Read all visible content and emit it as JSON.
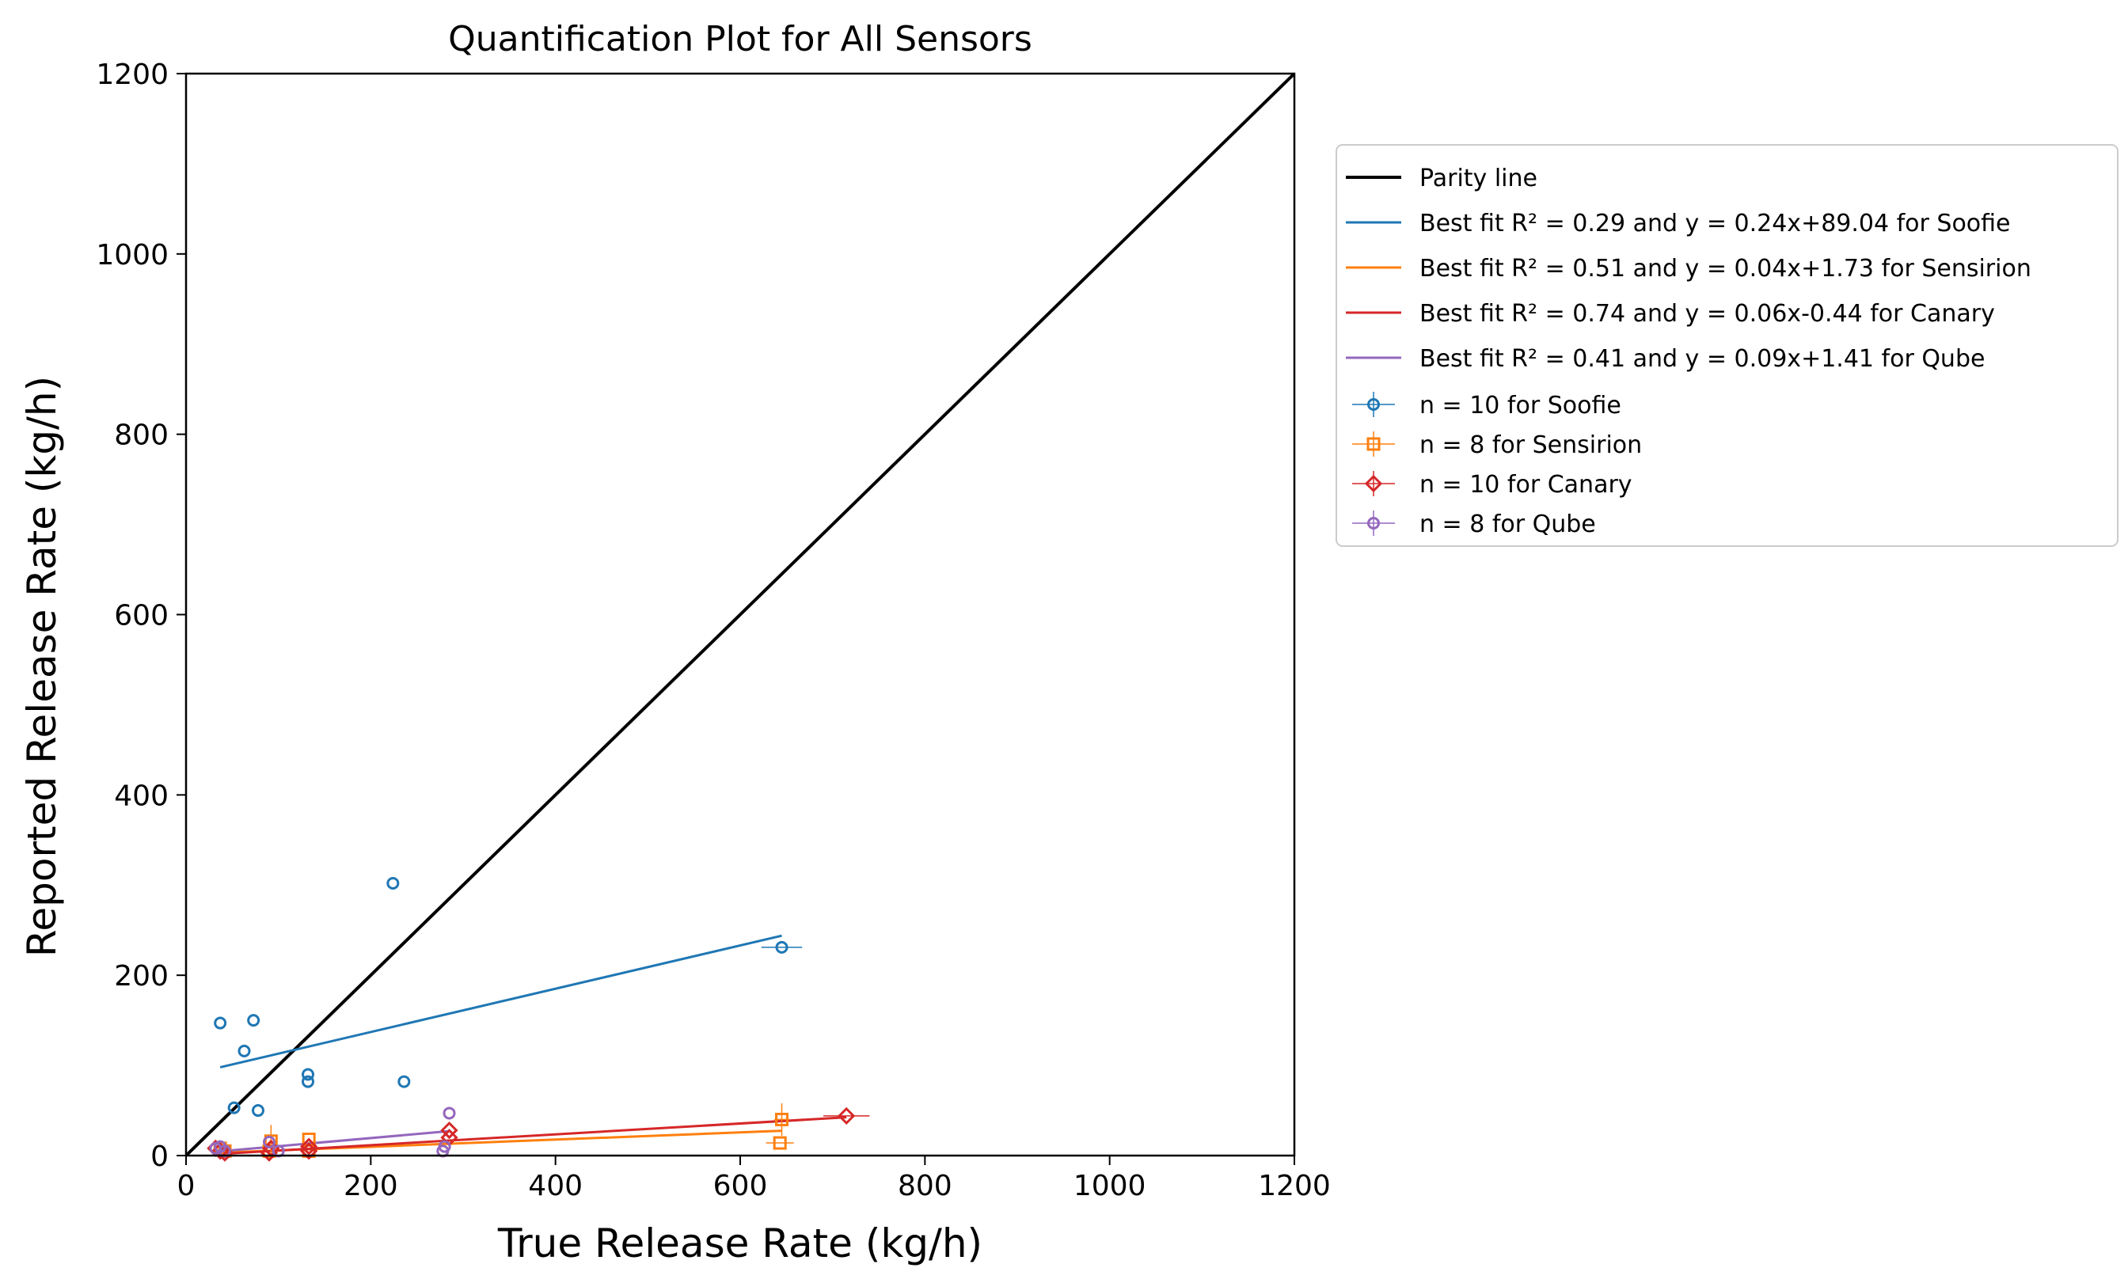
{
  "chart_data": {
    "type": "scatter",
    "title": "Quantification Plot for All Sensors",
    "xlabel": "True Release Rate (kg/h)",
    "ylabel": "Reported Release Rate (kg/h)",
    "xlim": [
      0,
      1200
    ],
    "ylim": [
      0,
      1200
    ],
    "xticks": [
      0,
      200,
      400,
      600,
      800,
      1000,
      1200
    ],
    "yticks": [
      0,
      200,
      400,
      600,
      800,
      1000,
      1200
    ],
    "grid": false,
    "legend_position": "outside-right-top",
    "parity_line": {
      "label": "Parity line",
      "color": "#000000"
    },
    "series": [
      {
        "name": "n = 10 for Soofie",
        "marker": "circle",
        "color": "#1f77b4",
        "x": [
          37,
          73,
          63,
          52,
          78,
          132,
          132,
          236,
          224,
          645
        ],
        "y": [
          147,
          150,
          116,
          53,
          50,
          90,
          82,
          82,
          302,
          231
        ],
        "xerr": [
          0,
          0,
          0,
          0,
          0,
          0,
          0,
          0,
          0,
          22
        ],
        "yerr": [
          0,
          0,
          0,
          0,
          0,
          0,
          0,
          0,
          0,
          0
        ],
        "fit": {
          "label_prefix": "Best fit ",
          "r2_label": "R² = 0.29",
          "equation": "y = 0.24x+89.04",
          "label_suffix": "for Soofie",
          "slope": 0.24,
          "intercept": 89.04,
          "x_range": [
            37,
            645
          ]
        }
      },
      {
        "name": "n = 8 for Sensirion",
        "marker": "square",
        "color": "#ff7f0e",
        "x": [
          37,
          42,
          90,
          92,
          133,
          133,
          645,
          643
        ],
        "y": [
          8,
          5,
          5,
          16,
          18,
          5,
          40,
          14
        ],
        "xerr": [
          0,
          0,
          0,
          0,
          0,
          0,
          8,
          15
        ],
        "yerr": [
          0,
          0,
          0,
          18,
          0,
          0,
          18,
          0
        ],
        "fit": {
          "label_prefix": "Best fit ",
          "r2_label": "R² = 0.51",
          "equation": "y = 0.04x+1.73",
          "label_suffix": "for Sensirion",
          "slope": 0.04,
          "intercept": 1.73,
          "x_range": [
            37,
            645
          ]
        }
      },
      {
        "name": "n = 10 for Canary",
        "marker": "diamond",
        "color": "#d62728",
        "x": [
          32,
          37,
          42,
          90,
          92,
          133,
          133,
          285,
          285,
          715
        ],
        "y": [
          8,
          5,
          3,
          3,
          8,
          5,
          10,
          28,
          20,
          44
        ],
        "xerr": [
          0,
          0,
          0,
          0,
          0,
          0,
          0,
          0,
          0,
          25
        ],
        "yerr": [
          0,
          0,
          0,
          0,
          0,
          0,
          0,
          0,
          0,
          0
        ],
        "fit": {
          "label_prefix": "Best fit ",
          "r2_label": "R² = 0.74",
          "equation": "y = 0.06x-0.44",
          "label_suffix": "for Canary",
          "slope": 0.06,
          "intercept": -0.44,
          "x_range": [
            32,
            715
          ]
        }
      },
      {
        "name": "n = 8 for Qube",
        "marker": "circle",
        "color": "#9467bd",
        "x": [
          32,
          37,
          42,
          90,
          100,
          285,
          280,
          278
        ],
        "y": [
          8,
          10,
          5,
          15,
          5,
          47,
          10,
          5
        ],
        "xerr": [
          0,
          0,
          0,
          0,
          0,
          0,
          0,
          0
        ],
        "yerr": [
          0,
          0,
          0,
          0,
          0,
          0,
          0,
          0
        ],
        "fit": {
          "label_prefix": "Best fit ",
          "r2_label": "R² = 0.41",
          "equation": "y = 0.09x+1.41",
          "label_suffix": "for Qube",
          "slope": 0.09,
          "intercept": 1.41,
          "x_range": [
            32,
            285
          ]
        }
      }
    ]
  }
}
